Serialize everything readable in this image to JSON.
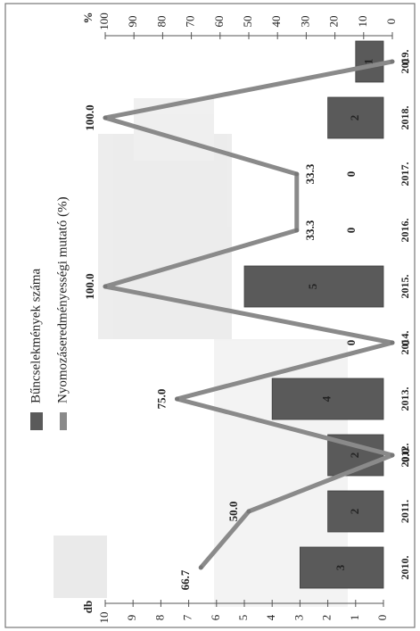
{
  "chart_data": {
    "type": "bar",
    "orientation": "rotated-90",
    "categories": [
      "2010.",
      "2011.",
      "2012.",
      "2013.",
      "2014.",
      "2015.",
      "2016.",
      "2017.",
      "2018.",
      "2019."
    ],
    "series": [
      {
        "name": "Bűncselekmények száma",
        "kind": "bar",
        "axis": "db",
        "values": [
          3,
          2,
          2,
          4,
          0,
          5,
          0,
          0,
          2,
          1
        ],
        "data_labels": [
          "3",
          "2",
          "2",
          "4",
          "0",
          "5",
          "0",
          "0",
          "2",
          "1"
        ],
        "color": "#5a5a5a"
      },
      {
        "name": "Nyomozáseredményességi mutató (%)",
        "kind": "line",
        "axis": "%",
        "values": [
          66.7,
          50.0,
          0.0,
          75.0,
          0.0,
          100.0,
          33.3,
          33.3,
          100.0,
          0.0
        ],
        "data_labels": [
          "66.7",
          "50.0",
          "0.0",
          "75.0",
          "0",
          "100.0",
          "33.3",
          "33.3",
          "100.0",
          "0"
        ],
        "color": "#8a8a8a"
      }
    ],
    "axis_db": {
      "label": "db",
      "range": [
        0,
        10
      ],
      "ticks": [
        "0",
        "1",
        "2",
        "3",
        "4",
        "5",
        "6",
        "7",
        "8",
        "9",
        "10"
      ]
    },
    "axis_pct": {
      "label": "%",
      "range": [
        0,
        100
      ],
      "ticks": [
        "0",
        "10",
        "20",
        "30",
        "40",
        "50",
        "60",
        "70",
        "80",
        "90",
        "100"
      ]
    },
    "legend_position": "left",
    "grid": false,
    "colors": {
      "bar": "#5a5a5a",
      "line": "#8a8a8a",
      "background": "#ffffff",
      "frame": "#777777"
    }
  }
}
